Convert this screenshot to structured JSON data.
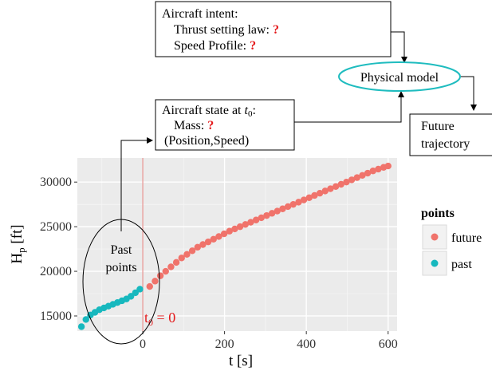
{
  "diagram": {
    "intent_box": {
      "title": "Aircraft intent:",
      "line1_label": "Thrust setting law: ",
      "line2_label": "Speed Profile: ",
      "mark": "?"
    },
    "state_box": {
      "title_prefix": "Aircraft state at ",
      "title_t": "t",
      "title_sub": "0",
      "title_suffix": ":",
      "line1_label": "Mass: ",
      "line2_label": "(Position,Speed)",
      "mark": "?"
    },
    "model_label": "Physical model",
    "future_box": {
      "line1": "Future",
      "line2": "trajectory"
    },
    "past_ellipse": {
      "line1": "Past",
      "line2": "points"
    }
  },
  "colors": {
    "past": "#17b8be",
    "future": "#f0736b",
    "model_ellipse": "#1fbcbf",
    "t0_line": "#e07b78",
    "panel_bg": "#ebebeb",
    "question_mark": "#e41a1c"
  },
  "chart_data": {
    "type": "scatter",
    "xlabel": "t [s]",
    "ylabel_main": "H",
    "ylabel_sub": "p",
    "ylabel_unit": " [ft]",
    "xlim": [
      -160,
      622
    ],
    "ylim": [
      13300,
      32700
    ],
    "x_ticks": [
      0,
      200,
      400,
      600
    ],
    "y_ticks": [
      15000,
      20000,
      25000,
      30000
    ],
    "grid": true,
    "legend": {
      "title": "points",
      "entries": [
        "future",
        "past"
      ],
      "placement": "right"
    },
    "t0_annotation": {
      "x": 0,
      "label_main": "t",
      "label_sub": "0",
      "label_rest": " = 0"
    },
    "series": [
      {
        "name": "past",
        "x": [
          -150,
          -139,
          -128,
          -117,
          -106,
          -95,
          -84,
          -73,
          -62,
          -51,
          -40,
          -29,
          -18,
          -7
        ],
        "y": [
          13800,
          14600,
          15100,
          15400,
          15700,
          15900,
          16100,
          16300,
          16500,
          16700,
          16900,
          17200,
          17600,
          18000
        ]
      },
      {
        "name": "future",
        "x": [
          17,
          30,
          43,
          56,
          69,
          82,
          95,
          108,
          121,
          134,
          147,
          160,
          173,
          186,
          199,
          212,
          225,
          238,
          251,
          264,
          277,
          290,
          303,
          316,
          329,
          342,
          355,
          368,
          381,
          394,
          407,
          420,
          433,
          446,
          459,
          472,
          485,
          498,
          511,
          524,
          537,
          550,
          563,
          576,
          589,
          600
        ],
        "y": [
          18300,
          18900,
          19500,
          20000,
          20500,
          21000,
          21500,
          21900,
          22300,
          22700,
          23000,
          23300,
          23600,
          23900,
          24200,
          24500,
          24750,
          25000,
          25250,
          25500,
          25750,
          26000,
          26250,
          26500,
          26750,
          27000,
          27250,
          27500,
          27750,
          28000,
          28250,
          28500,
          28750,
          29000,
          29250,
          29500,
          29750,
          30000,
          30250,
          30500,
          30750,
          31000,
          31250,
          31450,
          31650,
          31800
        ]
      }
    ]
  }
}
